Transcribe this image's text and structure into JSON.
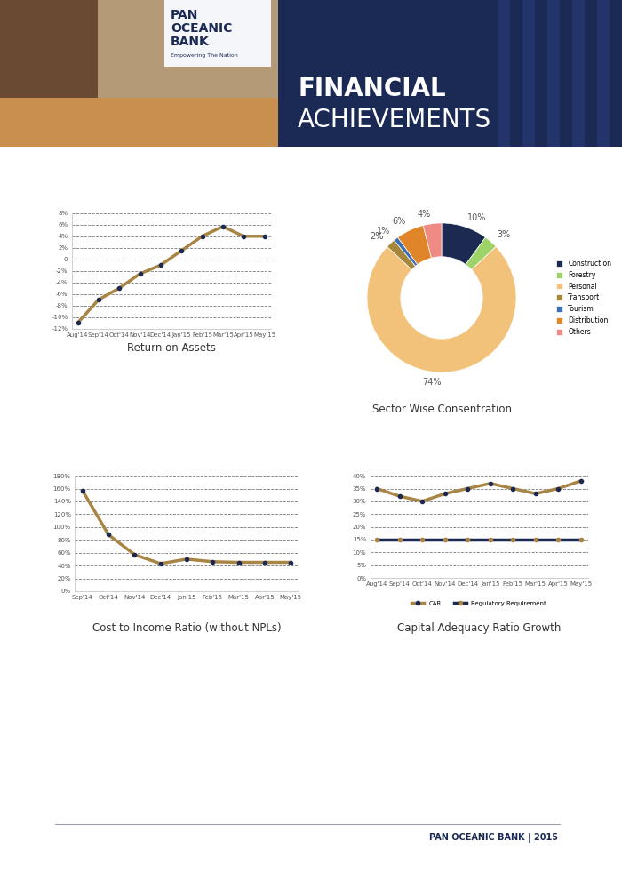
{
  "header": {
    "title": [
      "FINANCIAL",
      "ACHIEVEMENTS"
    ],
    "logo": {
      "name": [
        "PAN",
        "OCEANIC",
        "BANK"
      ],
      "tagline": "Empowering The Nation"
    }
  },
  "chart_data": [
    {
      "type": "line",
      "title": "Return on Assets",
      "categories": [
        "Aug'14",
        "Sep'14",
        "Oct'14",
        "Nov'14",
        "Dec'14",
        "Jan'15",
        "Feb'15",
        "Mar'15",
        "Apr'15",
        "May'15"
      ],
      "values": [
        -11,
        -7,
        -5,
        -2.5,
        -1,
        1.5,
        4,
        5.7,
        4,
        4
      ],
      "color": "#a88545",
      "marker": "o",
      "ylim": [
        -12,
        8
      ],
      "yticks": [
        {
          "value": -12,
          "label": "-12%"
        },
        {
          "value": -10,
          "label": "-10%"
        },
        {
          "value": -8,
          "label": "-8%"
        },
        {
          "value": -6,
          "label": "-6%"
        },
        {
          "value": -4,
          "label": "-4%"
        },
        {
          "value": -2,
          "label": "-2%"
        },
        {
          "value": 0,
          "label": "0"
        },
        {
          "value": 2,
          "label": "2%"
        },
        {
          "value": 4,
          "label": "4%"
        },
        {
          "value": 6,
          "label": "6%"
        },
        {
          "value": 8,
          "label": "8%"
        }
      ],
      "grid": true
    },
    {
      "type": "pie",
      "title": "Sector Wise Consentration",
      "categories": [
        "Construction",
        "Forestry",
        "Personal",
        "Transport",
        "Tourism",
        "Distribution",
        "Others"
      ],
      "values": [
        10,
        3,
        74,
        2,
        1,
        6,
        4
      ],
      "value_labels": [
        "10%",
        "3%",
        "74%",
        "2%",
        "1%",
        "6%",
        "4%"
      ],
      "colors": [
        "#1c2951",
        "#9ed36a",
        "#f2c27b",
        "#a6863a",
        "#3b6fb6",
        "#e0852a",
        "#f08b84"
      ],
      "data_labels": true,
      "legend": "right"
    },
    {
      "type": "line",
      "title": "Cost to Income Ratio (without NPLs)",
      "categories": [
        "Sep'14",
        "Oct'14",
        "Nov'14",
        "Dec'14",
        "Jan'15",
        "Feb'15",
        "Mar'15",
        "Apr'15",
        "May'15"
      ],
      "values": [
        157,
        88,
        57,
        43,
        50,
        46,
        45,
        45,
        45
      ],
      "color": "#a88545",
      "marker": "o",
      "ylim": [
        0,
        180
      ],
      "yticks": [
        {
          "value": 0,
          "label": "0%"
        },
        {
          "value": 20,
          "label": "20%"
        },
        {
          "value": 40,
          "label": "40%"
        },
        {
          "value": 60,
          "label": "60%"
        },
        {
          "value": 80,
          "label": "80%"
        },
        {
          "value": 100,
          "label": "100%"
        },
        {
          "value": 120,
          "label": "120%"
        },
        {
          "value": 140,
          "label": "140%"
        },
        {
          "value": 160,
          "label": "160%"
        },
        {
          "value": 180,
          "label": "180%"
        }
      ],
      "grid": true
    },
    {
      "type": "line",
      "title": "Capital Adequacy Ratio Growth",
      "categories": [
        "Aug'14",
        "Sep'14",
        "Oct'14",
        "Nov'14",
        "Dec'14",
        "Jan'15",
        "Feb'15",
        "Mar'15",
        "Apr'15",
        "May'15"
      ],
      "series": [
        {
          "name": "CAR",
          "color": "#a88545",
          "marker": "o",
          "values": [
            35,
            32,
            30,
            33,
            35,
            37,
            35,
            33,
            35,
            38
          ]
        },
        {
          "name": "Regulatory Requirement",
          "color": "#1c2951",
          "marker": "o",
          "values": [
            15,
            15,
            15,
            15,
            15,
            15,
            15,
            15,
            15,
            15
          ]
        }
      ],
      "ylim": [
        0,
        40
      ],
      "yticks": [
        {
          "value": 0,
          "label": "0%"
        },
        {
          "value": 5,
          "label": "5%"
        },
        {
          "value": 10,
          "label": "10%"
        },
        {
          "value": 15,
          "label": "15%"
        },
        {
          "value": 20,
          "label": "20%"
        },
        {
          "value": 25,
          "label": "25%"
        },
        {
          "value": 30,
          "label": "30%"
        },
        {
          "value": 35,
          "label": "35%"
        },
        {
          "value": 40,
          "label": "40%"
        }
      ],
      "grid": true,
      "legend": "bottom"
    }
  ],
  "footer": {
    "name": "PAN OCEANIC BANK",
    "separator": "|",
    "year": "2015"
  }
}
